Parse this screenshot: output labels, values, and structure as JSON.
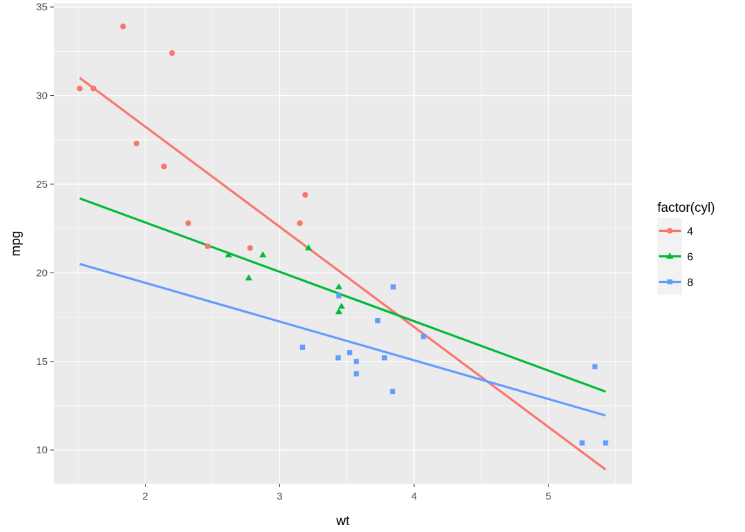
{
  "chart_data": {
    "type": "scatter",
    "xlabel": "wt",
    "ylabel": "mpg",
    "xlim": [
      1.32,
      5.62
    ],
    "ylim": [
      8.1,
      35.2
    ],
    "x_ticks": [
      2,
      3,
      4,
      5
    ],
    "y_ticks": [
      10,
      15,
      20,
      25,
      30,
      35
    ],
    "grid": true,
    "legend": {
      "title": "factor(cyl)",
      "placement": "right"
    },
    "series": [
      {
        "name": "4",
        "color": "#F8766D",
        "marker": "circle",
        "points": [
          [
            2.32,
            22.8
          ],
          [
            3.19,
            24.4
          ],
          [
            3.15,
            22.8
          ],
          [
            2.2,
            32.4
          ],
          [
            1.615,
            30.4
          ],
          [
            1.835,
            33.9
          ],
          [
            2.465,
            21.5
          ],
          [
            1.935,
            27.3
          ],
          [
            2.14,
            26.0
          ],
          [
            1.513,
            30.4
          ],
          [
            2.78,
            21.4
          ]
        ],
        "fit": [
          [
            1.513,
            31.0
          ],
          [
            5.424,
            8.9
          ]
        ]
      },
      {
        "name": "6",
        "color": "#00BA38",
        "marker": "triangle",
        "points": [
          [
            2.62,
            21.0
          ],
          [
            2.875,
            21.0
          ],
          [
            3.215,
            21.4
          ],
          [
            3.46,
            18.1
          ],
          [
            3.44,
            19.2
          ],
          [
            3.44,
            17.8
          ],
          [
            2.77,
            19.7
          ]
        ],
        "fit": [
          [
            1.513,
            24.2
          ],
          [
            5.424,
            13.3
          ]
        ]
      },
      {
        "name": "8",
        "color": "#619CFF",
        "marker": "square",
        "points": [
          [
            3.44,
            18.7
          ],
          [
            3.57,
            14.3
          ],
          [
            4.07,
            16.4
          ],
          [
            3.73,
            17.3
          ],
          [
            3.78,
            15.2
          ],
          [
            5.25,
            10.4
          ],
          [
            5.424,
            10.4
          ],
          [
            5.345,
            14.7
          ],
          [
            3.52,
            15.5
          ],
          [
            3.435,
            15.2
          ],
          [
            3.84,
            13.3
          ],
          [
            3.845,
            19.2
          ],
          [
            3.17,
            15.8
          ],
          [
            3.57,
            15.0
          ]
        ],
        "fit": [
          [
            1.513,
            20.5
          ],
          [
            5.424,
            11.95
          ]
        ]
      }
    ]
  }
}
